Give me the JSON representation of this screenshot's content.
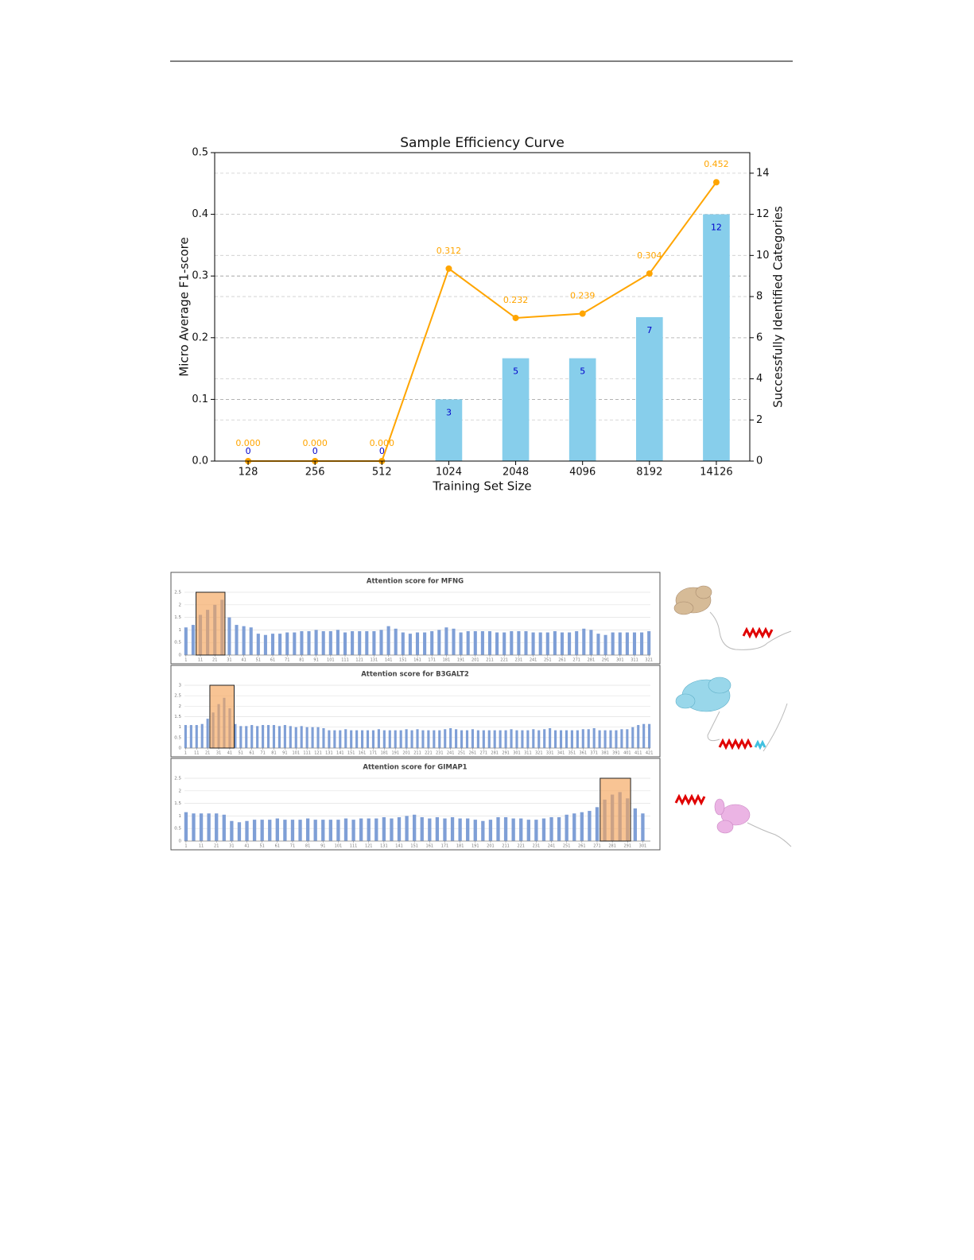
{
  "chart_data": [
    {
      "type": "bar",
      "title": "Sample Efficiency Curve",
      "x_label": "Training Set Size",
      "y_label": "Micro Average F1-score",
      "y2_label": "Successfully Identified Categories",
      "categories": [
        "128",
        "256",
        "512",
        "1024",
        "2048",
        "4096",
        "8192",
        "14126"
      ],
      "ylim": [
        0,
        0.5
      ],
      "yticks": [
        {
          "value": 0,
          "label": "0.0"
        },
        0.1,
        0.2,
        0.3,
        0.4,
        0.5
      ],
      "y2lim": [
        0,
        15
      ],
      "y2ticks": [
        0,
        2,
        4,
        6,
        8,
        10,
        12,
        14
      ],
      "grid": true,
      "series": [
        {
          "type": "bar",
          "axis": "y2",
          "color": "#87ceeb",
          "label_color": "#0000cc",
          "values": [
            0,
            0,
            0,
            3,
            5,
            5,
            7,
            12
          ]
        },
        {
          "type": "line",
          "axis": "y",
          "color": "#ffa500",
          "values": [
            0,
            0,
            0,
            0.312,
            0.232,
            0.239,
            0.304,
            0.452
          ],
          "value_labels": [
            "0.000",
            "0.000",
            "0.000",
            "0.312",
            "0.232",
            "0.239",
            "0.304",
            "0.452"
          ]
        }
      ]
    },
    {
      "type": "bar",
      "title": "Attention score for MFNG",
      "color": "#7f9fd6",
      "highlight": [
        8,
        28
      ],
      "xlim": [
        0,
        322
      ],
      "xticks": [
        1,
        11,
        21,
        31,
        41,
        51,
        61,
        71,
        81,
        91,
        101,
        111,
        121,
        131,
        141,
        151,
        161,
        171,
        181,
        191,
        201,
        211,
        221,
        231,
        241,
        251,
        261,
        271,
        281,
        291,
        301,
        311,
        321
      ],
      "ylim": [
        0,
        2.5
      ],
      "yticks": [
        0,
        0.5,
        1,
        1.5,
        2,
        2.5
      ],
      "grid": true,
      "x": [
        1,
        6,
        11,
        16,
        21,
        26,
        31,
        36,
        41,
        46,
        51,
        56,
        61,
        66,
        71,
        76,
        81,
        86,
        91,
        96,
        101,
        106,
        111,
        116,
        121,
        126,
        131,
        136,
        141,
        146,
        151,
        156,
        161,
        166,
        171,
        176,
        181,
        186,
        191,
        196,
        201,
        206,
        211,
        216,
        221,
        226,
        231,
        236,
        241,
        246,
        251,
        256,
        261,
        266,
        271,
        276,
        281,
        286,
        291,
        296,
        301,
        306,
        311,
        316,
        321
      ],
      "values": [
        1.1,
        1.2,
        1.6,
        1.8,
        2.0,
        2.2,
        1.5,
        1.2,
        1.15,
        1.1,
        0.85,
        0.8,
        0.85,
        0.85,
        0.9,
        0.9,
        0.95,
        0.95,
        1.0,
        0.95,
        0.95,
        1.0,
        0.9,
        0.95,
        0.95,
        0.95,
        0.95,
        1.0,
        1.15,
        1.05,
        0.9,
        0.85,
        0.9,
        0.9,
        0.95,
        1.0,
        1.1,
        1.05,
        0.9,
        0.95,
        0.95,
        0.95,
        0.95,
        0.9,
        0.9,
        0.95,
        0.95,
        0.95,
        0.9,
        0.9,
        0.9,
        0.95,
        0.9,
        0.9,
        0.95,
        1.05,
        1.0,
        0.85,
        0.8,
        0.9,
        0.9,
        0.9,
        0.9,
        0.9,
        0.95
      ]
    },
    {
      "type": "bar",
      "title": "Attention score for B3GALT2",
      "color": "#7f9fd6",
      "highlight": [
        23,
        45
      ],
      "xlim": [
        0,
        422
      ],
      "xticks": [
        1,
        11,
        21,
        31,
        41,
        51,
        61,
        71,
        81,
        91,
        101,
        111,
        121,
        131,
        141,
        151,
        161,
        171,
        181,
        191,
        201,
        211,
        221,
        231,
        241,
        251,
        261,
        271,
        281,
        291,
        301,
        311,
        321,
        331,
        341,
        351,
        361,
        371,
        381,
        391,
        401,
        411,
        421
      ],
      "ylim": [
        0,
        3
      ],
      "yticks": [
        0,
        0.5,
        1,
        1.5,
        2,
        2.5,
        3
      ],
      "grid": true,
      "x": [
        1,
        6,
        11,
        16,
        21,
        26,
        31,
        36,
        41,
        46,
        51,
        56,
        61,
        66,
        71,
        76,
        81,
        86,
        91,
        96,
        101,
        106,
        111,
        116,
        121,
        126,
        131,
        136,
        141,
        146,
        151,
        156,
        161,
        166,
        171,
        176,
        181,
        186,
        191,
        196,
        201,
        206,
        211,
        216,
        221,
        226,
        231,
        236,
        241,
        246,
        251,
        256,
        261,
        266,
        271,
        276,
        281,
        286,
        291,
        296,
        301,
        306,
        311,
        316,
        321,
        326,
        331,
        336,
        341,
        346,
        351,
        356,
        361,
        366,
        371,
        376,
        381,
        386,
        391,
        396,
        401,
        406,
        411,
        416,
        421
      ],
      "values": [
        1.1,
        1.1,
        1.1,
        1.15,
        1.4,
        1.7,
        2.1,
        2.4,
        1.9,
        1.15,
        1.05,
        1.05,
        1.1,
        1.05,
        1.1,
        1.1,
        1.1,
        1.05,
        1.1,
        1.05,
        1.0,
        1.05,
        1.0,
        1.0,
        1.0,
        0.95,
        0.85,
        0.85,
        0.85,
        0.9,
        0.85,
        0.85,
        0.85,
        0.85,
        0.85,
        0.9,
        0.85,
        0.85,
        0.85,
        0.85,
        0.9,
        0.85,
        0.9,
        0.85,
        0.85,
        0.85,
        0.85,
        0.9,
        0.95,
        0.9,
        0.85,
        0.85,
        0.9,
        0.85,
        0.85,
        0.85,
        0.85,
        0.85,
        0.85,
        0.9,
        0.85,
        0.85,
        0.85,
        0.9,
        0.85,
        0.9,
        0.95,
        0.85,
        0.85,
        0.85,
        0.85,
        0.85,
        0.9,
        0.9,
        0.95,
        0.85,
        0.85,
        0.85,
        0.85,
        0.9,
        0.9,
        1.0,
        1.1,
        1.15,
        1.15
      ]
    },
    {
      "type": "bar",
      "title": "Attention score for GIMAP1",
      "color": "#7f9fd6",
      "highlight": [
        273,
        293
      ],
      "xlim": [
        0,
        306
      ],
      "xticks": [
        1,
        11,
        21,
        31,
        41,
        51,
        61,
        71,
        81,
        91,
        101,
        111,
        121,
        131,
        141,
        151,
        161,
        171,
        181,
        191,
        201,
        211,
        221,
        231,
        241,
        251,
        261,
        271,
        281,
        291,
        301
      ],
      "ylim": [
        0,
        2.5
      ],
      "yticks": [
        0,
        0.5,
        1,
        1.5,
        2,
        2.5
      ],
      "grid": true,
      "x": [
        1,
        6,
        11,
        16,
        21,
        26,
        31,
        36,
        41,
        46,
        51,
        56,
        61,
        66,
        71,
        76,
        81,
        86,
        91,
        96,
        101,
        106,
        111,
        116,
        121,
        126,
        131,
        136,
        141,
        146,
        151,
        156,
        161,
        166,
        171,
        176,
        181,
        186,
        191,
        196,
        201,
        206,
        211,
        216,
        221,
        226,
        231,
        236,
        241,
        246,
        251,
        256,
        261,
        266,
        271,
        276,
        281,
        286,
        291,
        296,
        301
      ],
      "values": [
        1.15,
        1.1,
        1.1,
        1.1,
        1.1,
        1.05,
        0.8,
        0.75,
        0.8,
        0.85,
        0.85,
        0.85,
        0.9,
        0.85,
        0.85,
        0.85,
        0.9,
        0.85,
        0.85,
        0.85,
        0.85,
        0.9,
        0.85,
        0.9,
        0.9,
        0.9,
        0.95,
        0.9,
        0.95,
        1.0,
        1.05,
        0.95,
        0.9,
        0.95,
        0.9,
        0.95,
        0.9,
        0.9,
        0.85,
        0.8,
        0.85,
        0.95,
        0.95,
        0.9,
        0.9,
        0.85,
        0.85,
        0.9,
        0.95,
        0.95,
        1.05,
        1.1,
        1.15,
        1.2,
        1.35,
        1.65,
        1.85,
        1.95,
        1.7,
        1.3,
        1.1
      ]
    }
  ]
}
